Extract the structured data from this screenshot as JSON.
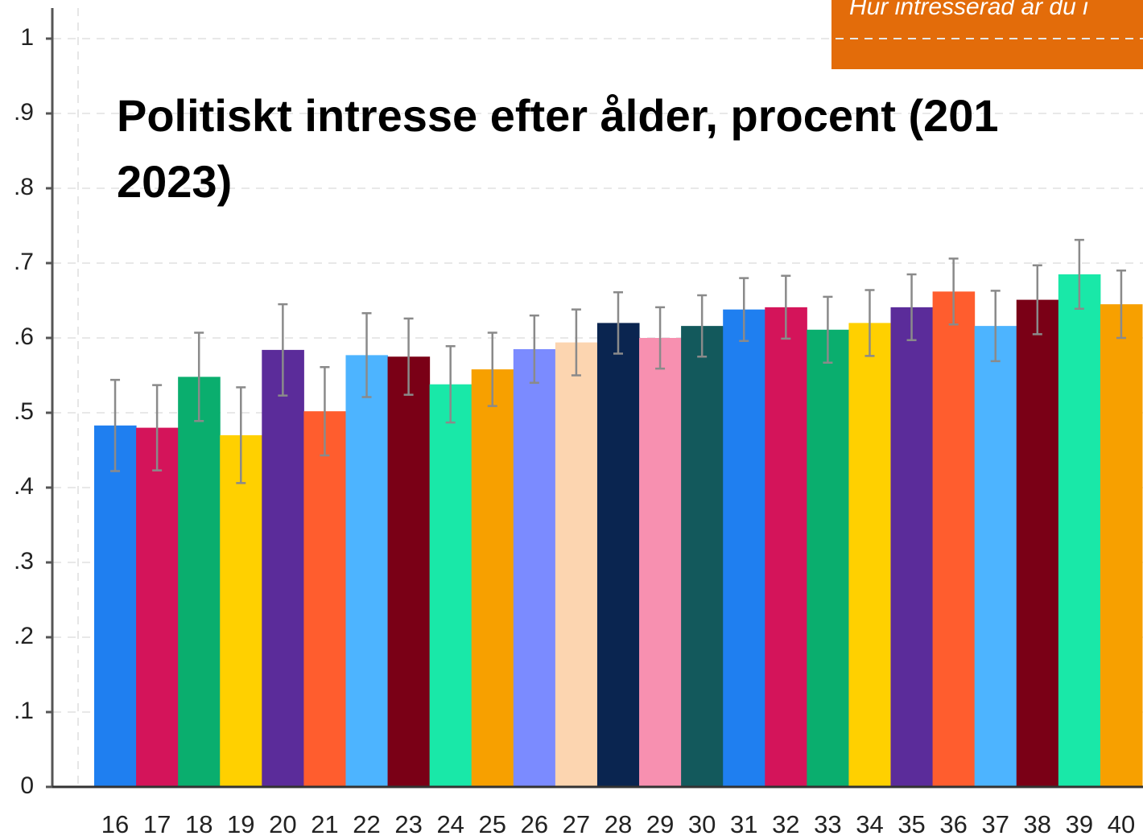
{
  "chart_data": {
    "type": "bar",
    "banner": "Hur intresserad är du i",
    "title": [
      "Politiskt intresse efter ålder, procent (201",
      "2023)"
    ],
    "categories": [
      "16",
      "17",
      "18",
      "19",
      "20",
      "21",
      "22",
      "23",
      "24",
      "25",
      "26",
      "27",
      "28",
      "29",
      "30",
      "31",
      "32",
      "33",
      "34",
      "35",
      "36",
      "37",
      "38",
      "39",
      "40"
    ],
    "values": [
      0.483,
      0.48,
      0.548,
      0.47,
      0.584,
      0.502,
      0.577,
      0.575,
      0.538,
      0.558,
      0.585,
      0.594,
      0.62,
      0.6,
      0.616,
      0.638,
      0.641,
      0.611,
      0.62,
      0.641,
      0.662,
      0.616,
      0.651,
      0.685,
      0.645
    ],
    "errors": [
      0.061,
      0.057,
      0.059,
      0.064,
      0.061,
      0.059,
      0.056,
      0.051,
      0.051,
      0.049,
      0.045,
      0.044,
      0.041,
      0.041,
      0.041,
      0.042,
      0.042,
      0.044,
      0.044,
      0.044,
      0.044,
      0.047,
      0.046,
      0.046,
      0.045
    ],
    "colors": [
      "#1f7ff0",
      "#d4145a",
      "#0aae6e",
      "#ffd000",
      "#5b2c9a",
      "#ff5d2e",
      "#4db4ff",
      "#7a0016",
      "#19e8a8",
      "#f7a000",
      "#7b8bff",
      "#fcd5b0",
      "#0a2550",
      "#f790b0",
      "#13595c",
      "#1f7ff0",
      "#d4145a",
      "#0aae6e",
      "#ffd000",
      "#5b2c9a",
      "#ff5d2e",
      "#4db4ff",
      "#7a0016",
      "#19e8a8",
      "#f7a000"
    ],
    "error_color": "#8a8a8a",
    "ylim": [
      0,
      1
    ],
    "yticks": [
      0,
      {
        "value": 0.1,
        "label": ".1"
      },
      {
        "value": 0.2,
        "label": ".2"
      },
      {
        "value": 0.3,
        "label": ".3"
      },
      {
        "value": 0.4,
        "label": ".4"
      },
      {
        "value": 0.5,
        "label": ".5"
      },
      {
        "value": 0.6,
        "label": ".6"
      },
      {
        "value": 0.7,
        "label": ".7"
      },
      {
        "value": 0.8,
        "label": ".8"
      },
      {
        "value": 0.9,
        "label": ".9"
      },
      1
    ],
    "grid": true
  }
}
